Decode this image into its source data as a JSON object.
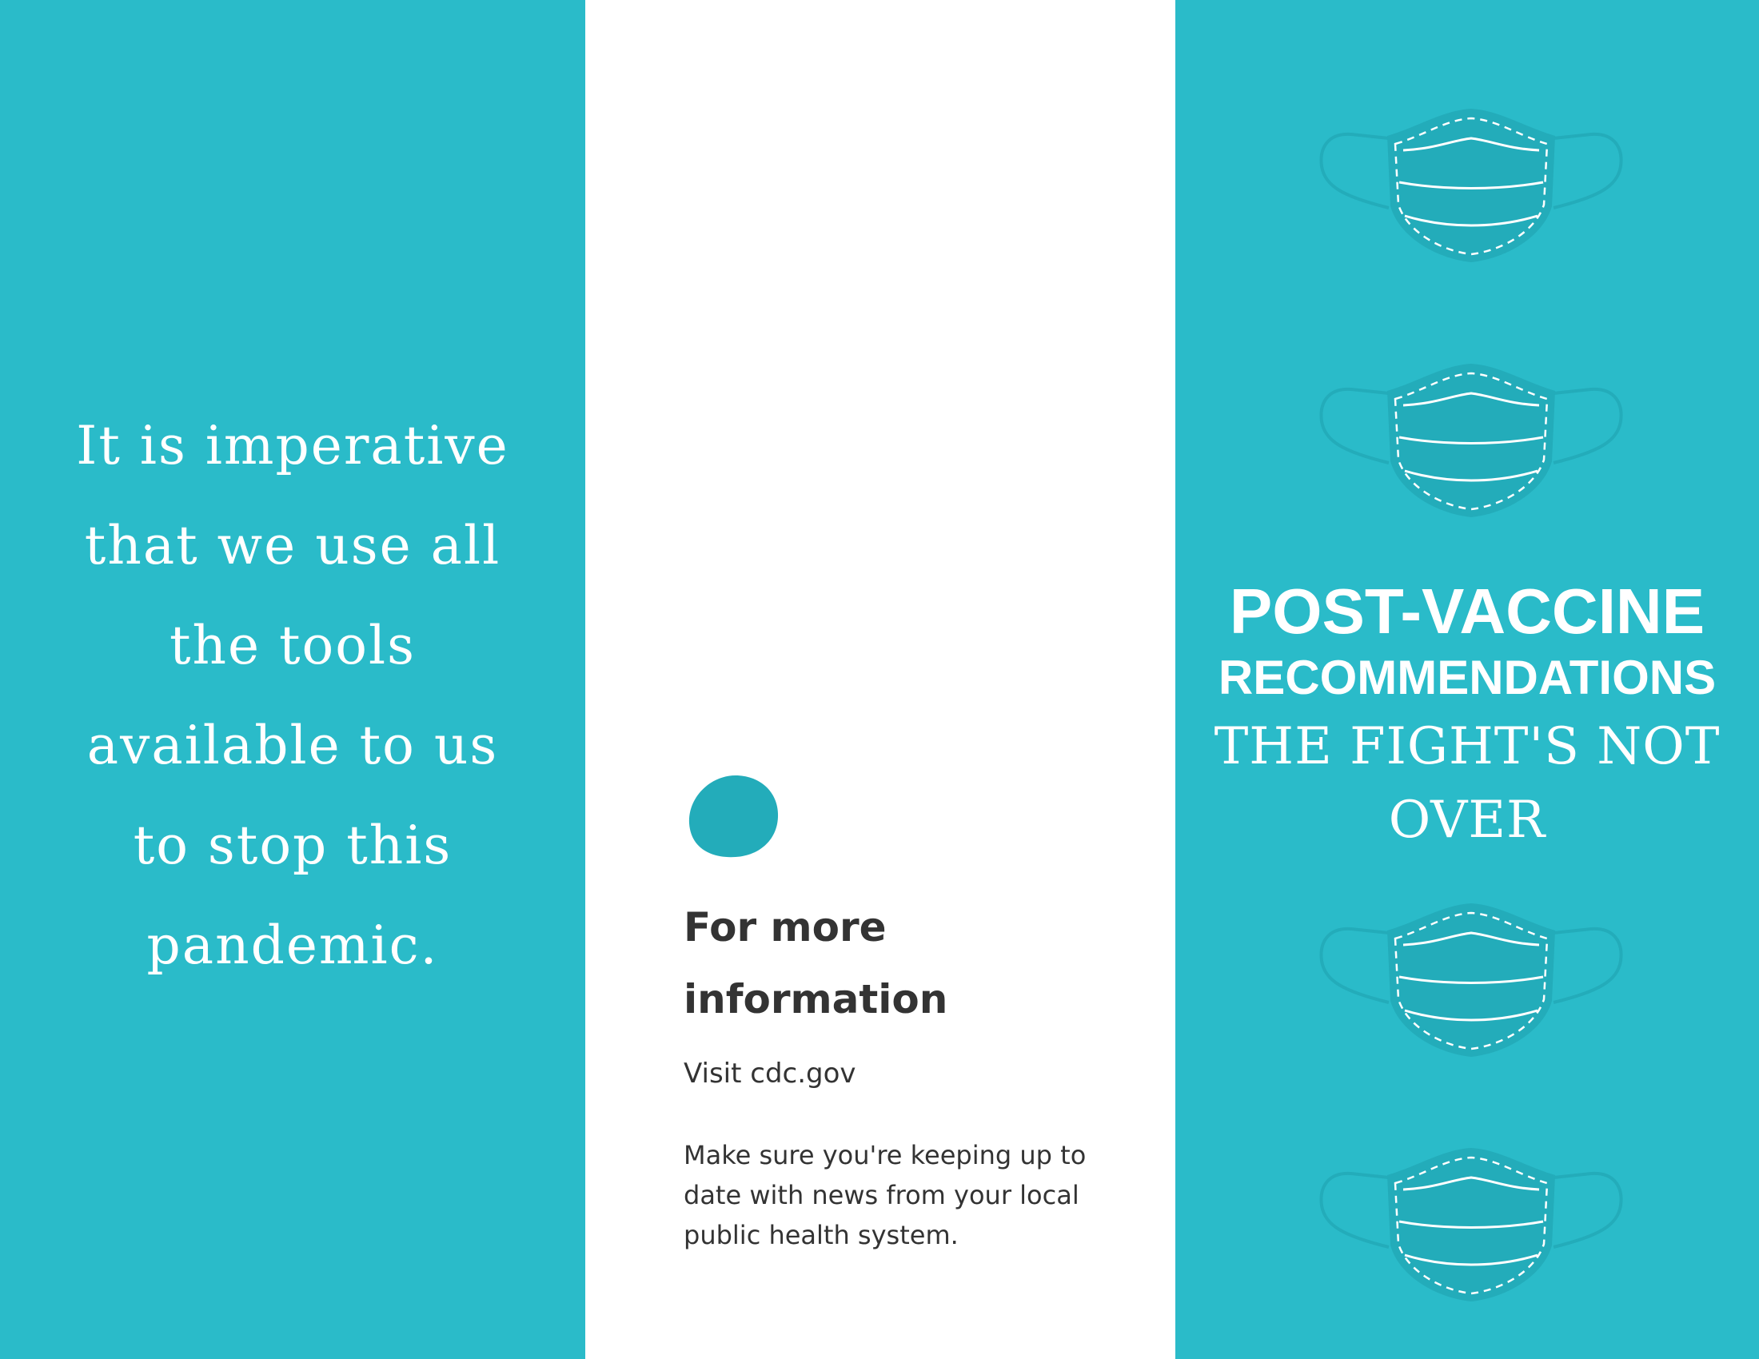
{
  "left_panel": {
    "quote_lines": [
      "It is imperative",
      "that we use all",
      "the tools",
      "available to us",
      "to stop this",
      "pandemic."
    ]
  },
  "middle_panel": {
    "heading_lines": [
      "For more",
      "information"
    ],
    "visit_text": "Visit cdc.gov",
    "body_lines": [
      "Make sure you're keeping up to",
      "date with news from your local",
      "public health system."
    ]
  },
  "right_panel": {
    "title": "POST-VACCINE",
    "subtitle": "RECOMMENDATIONS",
    "tagline_lines": [
      "THE FIGHT'S NOT",
      "OVER"
    ],
    "mask_icon_count": 4
  },
  "colors": {
    "panel_teal": "#2abbc9",
    "mask_teal": "#23acba",
    "blob_teal": "#23acba",
    "text_dark": "#333333",
    "text_light": "#ffffff"
  }
}
